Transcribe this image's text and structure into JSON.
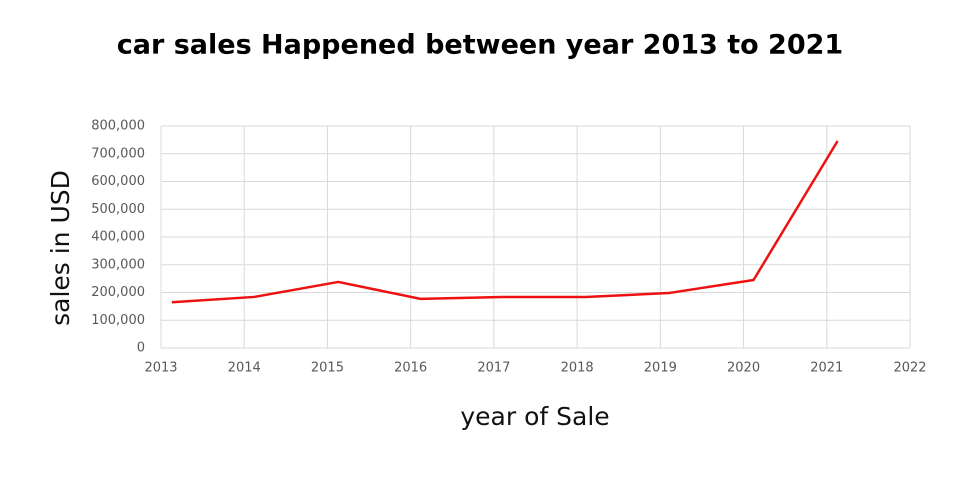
{
  "chart_data": {
    "type": "line",
    "title": "car sales Happened between year 2013 to 2021",
    "x_label": "year of Sale",
    "y_label": "sales in USD",
    "x": [
      2013.13,
      2014.12,
      2015.13,
      2016.12,
      2017.1,
      2018.1,
      2019.1,
      2020.12,
      2021.13
    ],
    "series": [
      {
        "color": "#ee1111",
        "values": [
          165000,
          184000,
          238000,
          177000,
          184000,
          184000,
          198000,
          245000,
          746000
        ]
      }
    ],
    "xlim": [
      2013,
      2022
    ],
    "xticks": [
      2013,
      2014,
      2015,
      2016,
      2017,
      2018,
      2019,
      2020,
      2021,
      2022
    ],
    "ylim": [
      0,
      800000
    ],
    "yticks": [
      0,
      {
        "value": 100000,
        "label": "100,000"
      },
      {
        "value": 200000,
        "label": "200,000"
      },
      {
        "value": 300000,
        "label": "300,000"
      },
      {
        "value": 400000,
        "label": "400,000"
      },
      {
        "value": 500000,
        "label": "500,000"
      },
      {
        "value": 600000,
        "label": "600,000"
      },
      {
        "value": 700000,
        "label": "700,000"
      },
      {
        "value": 800000,
        "label": "800,000"
      }
    ],
    "grid": true
  }
}
